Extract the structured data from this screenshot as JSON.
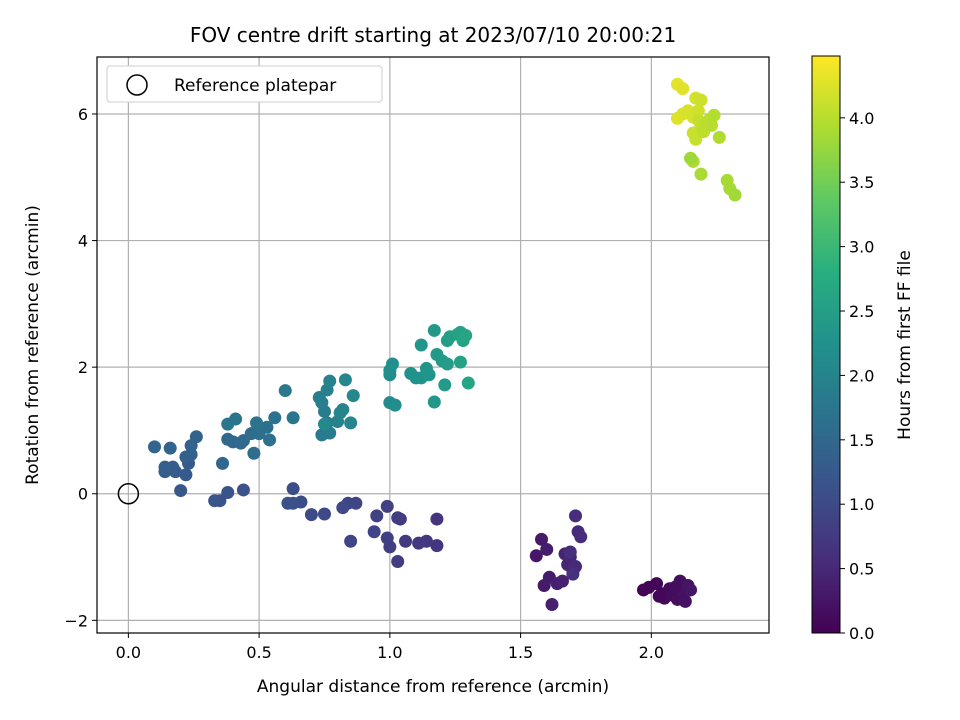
{
  "chart_data": {
    "type": "scatter",
    "title": "FOV centre drift starting at 2023/07/10 20:00:21",
    "xlabel": "Angular distance from reference (arcmin)",
    "ylabel": "Rotation from reference (arcmin)",
    "colorbar_label": "Hours from first FF file",
    "xlim": [
      -0.12,
      2.45
    ],
    "ylim": [
      -2.2,
      6.9
    ],
    "xticks": [
      0.0,
      0.5,
      1.0,
      1.5,
      2.0
    ],
    "xtick_labels": [
      "0.0",
      "0.5",
      "1.0",
      "1.5",
      "2.0"
    ],
    "yticks": [
      -2,
      0,
      2,
      4,
      6
    ],
    "ytick_labels": [
      "−2",
      "0",
      "2",
      "4",
      "6"
    ],
    "colorbar_range": [
      0.0,
      4.48
    ],
    "colorbar_ticks": [
      0.0,
      0.5,
      1.0,
      1.5,
      2.0,
      2.5,
      3.0,
      3.5,
      4.0
    ],
    "colorbar_tick_labels": [
      "0.0",
      "0.5",
      "1.0",
      "1.5",
      "2.0",
      "2.5",
      "3.0",
      "3.5",
      "4.0"
    ],
    "colormap": "viridis",
    "grid": true,
    "legend_position": "top-left",
    "reference": {
      "name": "Reference platepar",
      "x": 0.0,
      "y": 0.0
    },
    "points": [
      [
        1.97,
        -1.52,
        0.02
      ],
      [
        1.99,
        -1.48,
        0.04
      ],
      [
        2.02,
        -1.42,
        0.06
      ],
      [
        2.04,
        -1.58,
        0.08
      ],
      [
        2.05,
        -1.65,
        0.1
      ],
      [
        2.07,
        -1.5,
        0.12
      ],
      [
        2.08,
        -1.6,
        0.14
      ],
      [
        2.1,
        -1.67,
        0.16
      ],
      [
        2.11,
        -1.38,
        0.18
      ],
      [
        2.12,
        -1.55,
        0.2
      ],
      [
        2.13,
        -1.7,
        0.22
      ],
      [
        2.14,
        -1.45,
        0.24
      ],
      [
        2.15,
        -1.52,
        0.26
      ],
      [
        2.03,
        -1.62,
        0.07
      ],
      [
        2.09,
        -1.48,
        0.15
      ],
      [
        1.56,
        -0.98,
        0.28
      ],
      [
        1.58,
        -0.72,
        0.3
      ],
      [
        1.59,
        -1.45,
        0.32
      ],
      [
        1.6,
        -0.88,
        0.34
      ],
      [
        1.61,
        -1.32,
        0.36
      ],
      [
        1.62,
        -1.75,
        0.38
      ],
      [
        1.64,
        -1.42,
        0.4
      ],
      [
        1.66,
        -1.38,
        0.42
      ],
      [
        1.67,
        -0.95,
        0.44
      ],
      [
        1.68,
        -1.12,
        0.46
      ],
      [
        1.69,
        -1.0,
        0.48
      ],
      [
        1.7,
        -1.22,
        0.5
      ],
      [
        1.71,
        -1.15,
        0.52
      ],
      [
        1.72,
        -0.6,
        0.54
      ],
      [
        1.73,
        -0.68,
        0.56
      ],
      [
        1.71,
        -0.35,
        0.58
      ],
      [
        1.69,
        -0.92,
        0.6
      ],
      [
        1.7,
        -1.27,
        0.62
      ],
      [
        1.18,
        -0.82,
        0.66
      ],
      [
        1.18,
        -0.4,
        0.68
      ],
      [
        1.14,
        -0.75,
        0.7
      ],
      [
        1.11,
        -0.78,
        0.72
      ],
      [
        1.06,
        -0.75,
        0.74
      ],
      [
        1.04,
        -0.4,
        0.76
      ],
      [
        1.03,
        -0.38,
        0.78
      ],
      [
        1.03,
        -1.07,
        0.8
      ],
      [
        1.0,
        -0.84,
        0.82
      ],
      [
        0.99,
        -0.7,
        0.84
      ],
      [
        0.99,
        -0.2,
        0.86
      ],
      [
        0.95,
        -0.35,
        0.88
      ],
      [
        0.94,
        -0.6,
        0.9
      ],
      [
        0.87,
        -0.15,
        0.92
      ],
      [
        0.85,
        -0.75,
        0.94
      ],
      [
        0.84,
        -0.15,
        0.96
      ],
      [
        0.82,
        -0.22,
        0.98
      ],
      [
        0.75,
        -0.32,
        1.0
      ],
      [
        0.7,
        -0.33,
        1.02
      ],
      [
        0.66,
        -0.13,
        1.04
      ],
      [
        0.63,
        0.08,
        1.06
      ],
      [
        0.63,
        -0.15,
        1.08
      ],
      [
        0.61,
        -0.15,
        1.1
      ],
      [
        0.44,
        0.06,
        1.12
      ],
      [
        0.38,
        0.02,
        1.14
      ],
      [
        0.35,
        -0.11,
        1.16
      ],
      [
        0.33,
        -0.11,
        1.18
      ],
      [
        0.2,
        0.05,
        1.22
      ],
      [
        0.22,
        0.3,
        1.24
      ],
      [
        0.23,
        0.48,
        1.26
      ],
      [
        0.18,
        0.35,
        1.28
      ],
      [
        0.17,
        0.42,
        1.3
      ],
      [
        0.14,
        0.35,
        1.32
      ],
      [
        0.14,
        0.42,
        1.34
      ],
      [
        0.22,
        0.58,
        1.36
      ],
      [
        0.24,
        0.62,
        1.38
      ],
      [
        0.24,
        0.76,
        1.4
      ],
      [
        0.26,
        0.9,
        1.42
      ],
      [
        0.16,
        0.72,
        1.44
      ],
      [
        0.1,
        0.74,
        1.46
      ],
      [
        0.36,
        0.48,
        1.48
      ],
      [
        0.38,
        0.86,
        1.5
      ],
      [
        0.4,
        0.82,
        1.52
      ],
      [
        0.43,
        0.8,
        1.54
      ],
      [
        0.44,
        0.84,
        1.56
      ],
      [
        0.47,
        0.95,
        1.58
      ],
      [
        0.48,
        0.64,
        1.6
      ],
      [
        0.5,
        0.95,
        1.62
      ],
      [
        0.53,
        1.05,
        1.64
      ],
      [
        0.54,
        0.85,
        1.66
      ],
      [
        0.56,
        1.2,
        1.68
      ],
      [
        0.49,
        1.12,
        1.7
      ],
      [
        0.41,
        1.18,
        1.72
      ],
      [
        0.38,
        1.1,
        1.74
      ],
      [
        0.63,
        1.2,
        1.76
      ],
      [
        0.6,
        1.63,
        1.78
      ],
      [
        0.74,
        0.93,
        1.82
      ],
      [
        0.76,
        1.12,
        1.84
      ],
      [
        0.77,
        0.96,
        1.86
      ],
      [
        0.75,
        1.3,
        1.88
      ],
      [
        0.74,
        1.44,
        1.9
      ],
      [
        0.73,
        1.52,
        1.92
      ],
      [
        0.76,
        1.64,
        1.94
      ],
      [
        0.77,
        1.78,
        1.96
      ],
      [
        0.8,
        1.14,
        1.98
      ],
      [
        0.81,
        1.28,
        2.0
      ],
      [
        0.82,
        1.33,
        2.02
      ],
      [
        0.83,
        1.8,
        2.04
      ],
      [
        0.85,
        1.12,
        2.06
      ],
      [
        0.86,
        1.55,
        2.08
      ],
      [
        0.75,
        1.1,
        2.1
      ],
      [
        1.0,
        1.44,
        2.14
      ],
      [
        1.02,
        1.4,
        2.16
      ],
      [
        1.0,
        1.88,
        2.18
      ],
      [
        1.0,
        1.95,
        2.2
      ],
      [
        1.01,
        2.05,
        2.22
      ],
      [
        1.08,
        1.9,
        2.24
      ],
      [
        1.1,
        1.83,
        2.26
      ],
      [
        1.12,
        1.83,
        2.28
      ],
      [
        1.14,
        1.98,
        2.3
      ],
      [
        1.15,
        1.88,
        2.32
      ],
      [
        1.12,
        2.35,
        2.34
      ],
      [
        1.17,
        1.45,
        2.36
      ],
      [
        1.17,
        2.58,
        2.38
      ],
      [
        1.18,
        2.2,
        2.4
      ],
      [
        1.2,
        2.1,
        2.42
      ],
      [
        1.21,
        1.72,
        2.44
      ],
      [
        1.22,
        2.05,
        2.46
      ],
      [
        1.22,
        2.42,
        2.48
      ],
      [
        1.23,
        2.48,
        2.5
      ],
      [
        1.26,
        2.52,
        2.52
      ],
      [
        1.27,
        2.55,
        2.54
      ],
      [
        1.27,
        2.08,
        2.56
      ],
      [
        1.28,
        2.42,
        2.58
      ],
      [
        1.29,
        2.5,
        2.6
      ],
      [
        1.3,
        1.75,
        2.62
      ],
      [
        2.1,
        6.47,
        4.3
      ],
      [
        2.12,
        6.4,
        4.28
      ],
      [
        2.1,
        5.93,
        4.26
      ],
      [
        2.12,
        6.0,
        4.24
      ],
      [
        2.14,
        6.05,
        4.22
      ],
      [
        2.16,
        5.95,
        4.2
      ],
      [
        2.17,
        6.25,
        4.18
      ],
      [
        2.18,
        6.05,
        4.16
      ],
      [
        2.19,
        6.22,
        4.14
      ],
      [
        2.16,
        5.7,
        4.12
      ],
      [
        2.17,
        5.6,
        4.1
      ],
      [
        2.18,
        5.9,
        4.08
      ],
      [
        2.19,
        5.78,
        4.06
      ],
      [
        2.2,
        5.72,
        4.04
      ],
      [
        2.21,
        5.85,
        4.02
      ],
      [
        2.22,
        5.9,
        4.0
      ],
      [
        2.23,
        5.82,
        3.98
      ],
      [
        2.24,
        5.98,
        3.96
      ],
      [
        2.26,
        5.63,
        3.94
      ],
      [
        2.16,
        5.25,
        3.92
      ],
      [
        2.19,
        5.05,
        3.9
      ],
      [
        2.29,
        4.95,
        3.88
      ],
      [
        2.3,
        4.82,
        3.86
      ],
      [
        2.32,
        4.72,
        3.84
      ],
      [
        2.15,
        5.3,
        3.82
      ]
    ]
  }
}
